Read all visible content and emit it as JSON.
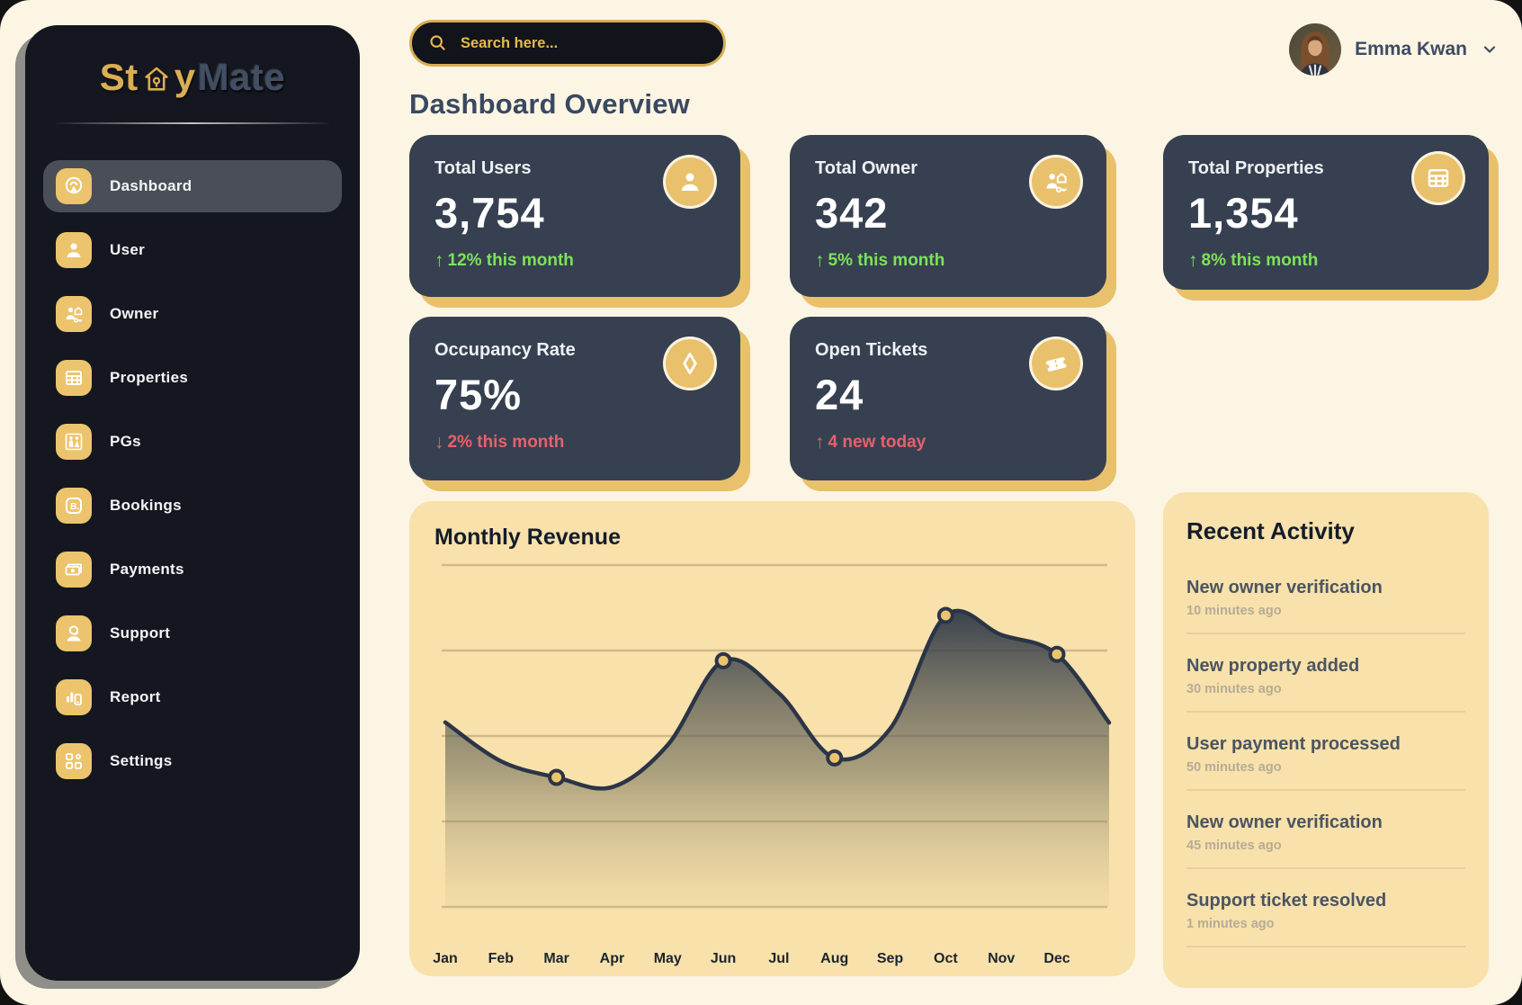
{
  "brand": {
    "part1": "St",
    "part2": "y",
    "part3": "Mate"
  },
  "sidebar": {
    "items": [
      {
        "label": "Dashboard",
        "icon": "dashboard-icon",
        "active": true
      },
      {
        "label": "User",
        "icon": "user-icon",
        "active": false
      },
      {
        "label": "Owner",
        "icon": "owner-icon",
        "active": false
      },
      {
        "label": "Properties",
        "icon": "properties-icon",
        "active": false
      },
      {
        "label": "PGs",
        "icon": "pgs-icon",
        "active": false
      },
      {
        "label": "Bookings",
        "icon": "bookings-icon",
        "active": false
      },
      {
        "label": "Payments",
        "icon": "payments-icon",
        "active": false
      },
      {
        "label": "Support",
        "icon": "support-icon",
        "active": false
      },
      {
        "label": "Report",
        "icon": "report-icon",
        "active": false
      },
      {
        "label": "Settings",
        "icon": "settings-icon",
        "active": false
      }
    ]
  },
  "header": {
    "search_placeholder": "Search here...",
    "user_name": "Emma Kwan"
  },
  "page_title": "Dashboard Overview",
  "stats": [
    {
      "title": "Total Users",
      "value": "3,754",
      "delta_arrow": "↑",
      "delta": "12% this month",
      "trend": "up-green",
      "icon": "person-icon"
    },
    {
      "title": "Total Owner",
      "value": "342",
      "delta_arrow": "↑",
      "delta": "5% this month",
      "trend": "up-green",
      "icon": "owner-house-key-icon"
    },
    {
      "title": "Total Properties",
      "value": "1,354",
      "delta_arrow": "↑",
      "delta": "8% this month",
      "trend": "up-green",
      "icon": "table-icon"
    },
    {
      "title": "Occupancy Rate",
      "value": "75%",
      "delta_arrow": "↓",
      "delta": "2% this month",
      "trend": "down-red",
      "icon": "diamond-icon"
    },
    {
      "title": "Open Tickets",
      "value": "24",
      "delta_arrow": "↑",
      "delta": "4 new today",
      "trend": "up-red",
      "icon": "ticket-icon"
    }
  ],
  "chart_data": {
    "type": "area",
    "title": "Monthly Revenue",
    "x": [
      "Jan",
      "Feb",
      "Mar",
      "Apr",
      "May",
      "Jun",
      "Jul",
      "Aug",
      "Sep",
      "Oct",
      "Nov",
      "Dec"
    ],
    "values": [
      57,
      45,
      40,
      37,
      50,
      76,
      66,
      46,
      55,
      90,
      84,
      78
    ],
    "marker_indices": [
      2,
      5,
      7,
      9,
      11
    ],
    "ylim": [
      0,
      100
    ],
    "y_axis_labels": [],
    "grid": true,
    "gridline_count": 5,
    "legend": false,
    "line_color": "#2b3547",
    "marker_fill": "#ecc46d",
    "area_gradient_top": "#2d3648",
    "note": "no y-axis labels shown; values estimated from plotted curve"
  },
  "recent_activity": {
    "title": "Recent Activity",
    "items": [
      {
        "label": "New owner verification",
        "time": "10 minutes ago"
      },
      {
        "label": "New property added",
        "time": "30 minutes ago"
      },
      {
        "label": "User payment processed",
        "time": "50 minutes ago"
      },
      {
        "label": "New owner verification",
        "time": "45 minutes ago"
      },
      {
        "label": "Support ticket resolved",
        "time": "1 minutes ago"
      }
    ]
  },
  "colors": {
    "page_background": "#fcf5e3",
    "sidebar_background": "#14171f",
    "card_dark": "#364050",
    "panel_cream": "#f8e1aa",
    "accent_gold": "#e9c16c",
    "positive_green": "#7de25a",
    "negative_red": "#e8606b",
    "title_slate": "#3a4860"
  }
}
